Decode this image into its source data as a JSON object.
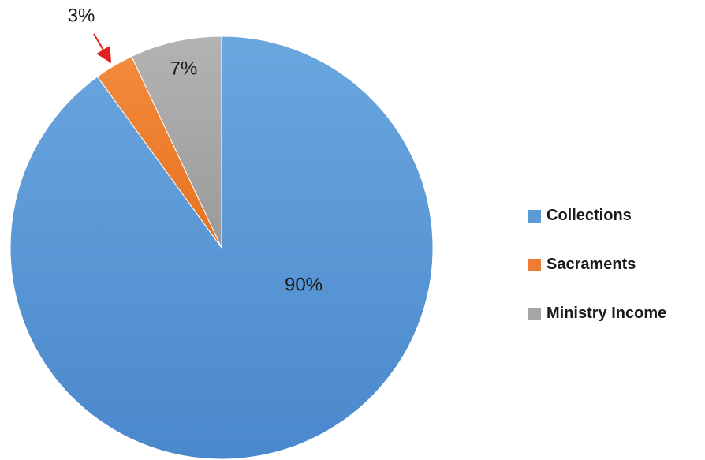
{
  "chart_data": {
    "type": "pie",
    "slices": [
      {
        "label": "Collections",
        "value": 90,
        "data_label": "90%",
        "color": "#5b9bd5"
      },
      {
        "label": "Sacraments",
        "value": 3,
        "data_label": "3%",
        "color": "#ed7d31"
      },
      {
        "label": "Ministry Income",
        "value": 7,
        "data_label": "7%",
        "color": "#a5a5a5"
      }
    ],
    "start": "12 o'clock, clockwise",
    "legend": "right",
    "annotations": [
      {
        "text": "3%",
        "note": "red arrow pointing to Sacraments slice",
        "arrow_color": "#e02020"
      }
    ]
  }
}
